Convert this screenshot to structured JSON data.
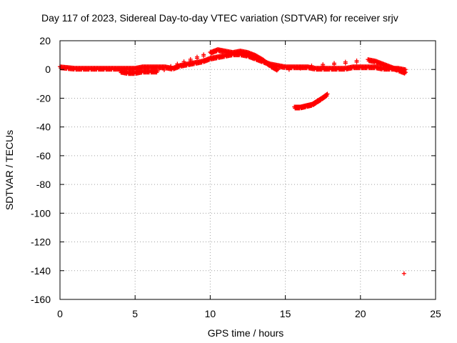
{
  "chart_data": {
    "type": "scatter",
    "title": "Day 117 of 2023, Sidereal Day-to-day VTEC variation (SDTVAR) for receiver srjv",
    "xlabel": "GPS time / hours",
    "ylabel": "SDTVAR / TECUs",
    "xlim": [
      0,
      25
    ],
    "ylim": [
      -160,
      20
    ],
    "xticks": [
      0,
      5,
      10,
      15,
      20,
      25
    ],
    "yticks": [
      20,
      0,
      -20,
      -40,
      -60,
      -80,
      -100,
      -120,
      -140,
      -160
    ],
    "grid": true,
    "marker": "+",
    "color": "#ff0000",
    "series": [
      {
        "name": "main-trace",
        "x": [
          0,
          0.5,
          1,
          1.5,
          2,
          2.5,
          3,
          3.5,
          4,
          4.5,
          5,
          5.5,
          6,
          6.5,
          7,
          7.5,
          8,
          8.5,
          9,
          9.5,
          10,
          10.5,
          11,
          11.5,
          12,
          12.5,
          13,
          13.5,
          14,
          14.5,
          15,
          15.5,
          16,
          16.5,
          17,
          17.5,
          18,
          18.5,
          19,
          19.5,
          20,
          20.5,
          21,
          21.5,
          22,
          22.5,
          23
        ],
        "y": [
          2,
          1.5,
          1,
          1,
          1,
          1,
          1,
          1,
          1,
          1,
          1,
          2,
          2,
          2,
          2,
          1,
          3,
          4,
          5,
          6,
          8,
          9,
          10,
          11,
          11,
          10,
          8,
          6,
          4,
          3,
          2,
          2,
          2,
          2,
          1,
          1,
          1,
          1,
          1,
          2,
          2,
          2,
          2,
          1,
          1,
          1,
          0
        ]
      },
      {
        "name": "main-trace-spread",
        "x": [
          4,
          4.5,
          5,
          5.5,
          6,
          6.5,
          10,
          10.5,
          11,
          11.5,
          12,
          12.5,
          13,
          13.5,
          14,
          14.5,
          20.5,
          21,
          21.5,
          22,
          22.5,
          23
        ],
        "y": [
          -1,
          -2,
          -2,
          -1,
          -1,
          -1,
          12,
          14,
          13,
          12,
          13,
          12,
          10,
          7,
          3,
          0,
          7,
          6,
          4,
          2,
          0,
          -2
        ]
      },
      {
        "name": "negative-arc",
        "x": [
          15.6,
          16,
          16.4,
          16.8,
          17.1,
          17.4,
          17.8
        ],
        "y": [
          -26,
          -26,
          -25,
          -24,
          -22,
          -20,
          -17
        ]
      },
      {
        "name": "outlier",
        "x": [
          22.9
        ],
        "y": [
          -142
        ]
      }
    ]
  }
}
